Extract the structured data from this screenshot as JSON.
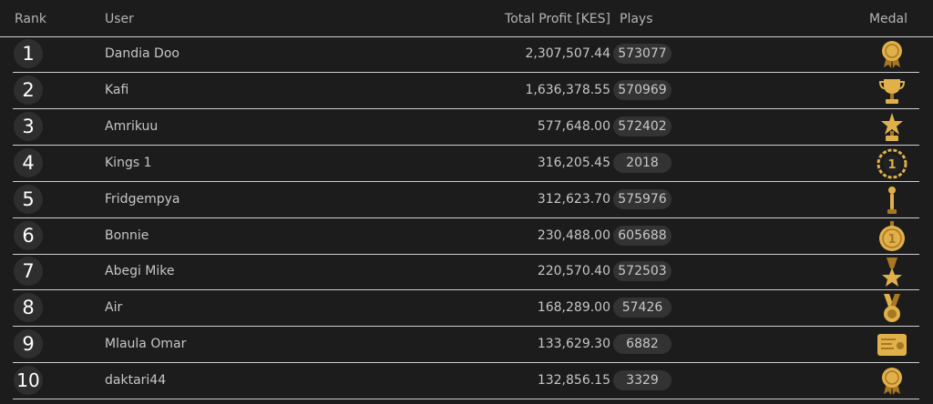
{
  "header": {
    "rank": "Rank",
    "user": "User",
    "profit": "Total Profit [KES]",
    "plays": "Plays",
    "medal": "Medal"
  },
  "rows": [
    {
      "rank": "1",
      "user": "Dandia Doo",
      "profit": "2,307,507.44",
      "plays": "573077",
      "medal_icon": "rosette-award-icon"
    },
    {
      "rank": "2",
      "user": "Kafi",
      "profit": "1,636,378.55",
      "plays": "570969",
      "medal_icon": "trophy-cup-icon"
    },
    {
      "rank": "3",
      "user": "Amrikuu",
      "profit": "577,648.00",
      "plays": "572402",
      "medal_icon": "star-trophy-icon"
    },
    {
      "rank": "4",
      "user": "Kings 1",
      "profit": "316,205.45",
      "plays": "2018",
      "medal_icon": "laurel-wreath-icon"
    },
    {
      "rank": "5",
      "user": "Fridgempya",
      "profit": "312,623.70",
      "plays": "575976",
      "medal_icon": "torch-award-icon"
    },
    {
      "rank": "6",
      "user": "Bonnie",
      "profit": "230,488.00",
      "plays": "605688",
      "medal_icon": "gold-coin-medal-icon"
    },
    {
      "rank": "7",
      "user": "Abegi Mike",
      "profit": "220,570.40",
      "plays": "572503",
      "medal_icon": "star-ribbon-medal-icon"
    },
    {
      "rank": "8",
      "user": "Air",
      "profit": "168,289.00",
      "plays": "57426",
      "medal_icon": "ribbon-medal-icon"
    },
    {
      "rank": "9",
      "user": "Mlaula Omar",
      "profit": "133,629.30",
      "plays": "6882",
      "medal_icon": "certificate-icon"
    },
    {
      "rank": "10",
      "user": "daktari44",
      "profit": "132,856.15",
      "plays": "3329",
      "medal_icon": "rosette-award-icon"
    }
  ],
  "colors": {
    "background": "#1c1c1c",
    "rank_circle": "#2e2e2e",
    "plays_pill": "#333333",
    "gold": "#e0b04a",
    "gold_dark": "#a87722",
    "divider": "#cfcfcf"
  }
}
